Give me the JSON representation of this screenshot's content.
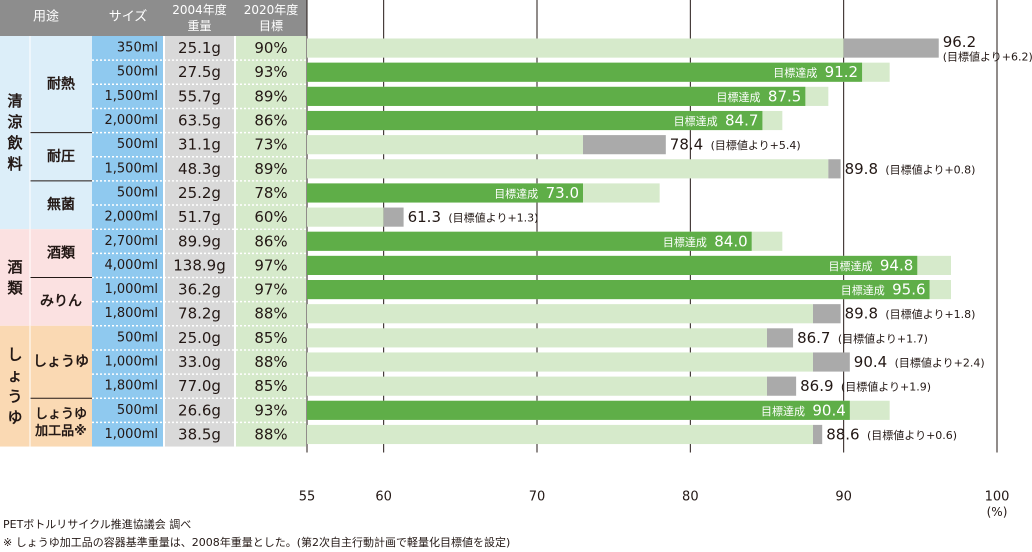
{
  "chart_data": {
    "type": "bar",
    "title": "",
    "xlabel": "",
    "ylabel": "",
    "xlim": [
      55,
      100
    ],
    "xticks": [
      55,
      60,
      70,
      80,
      90,
      100
    ],
    "unit_label": "(%)",
    "achieved_label": "目標達成",
    "headers": {
      "use": "用途",
      "size": "サイズ",
      "weight_2004_line1": "2004年度",
      "weight_2004_line2": "重量",
      "target_2020_line1": "2020年度",
      "target_2020_line2": "目標"
    },
    "category_groups": [
      {
        "name": "清涼飲料",
        "color": "#dceef9",
        "subgroups": [
          {
            "name": "耐熱",
            "rows": 4
          },
          {
            "name": "耐圧",
            "rows": 2
          },
          {
            "name": "無菌",
            "rows": 2
          }
        ]
      },
      {
        "name": "酒類",
        "color": "#fbe1e1",
        "subgroups": [
          {
            "name": "酒類",
            "rows": 2
          },
          {
            "name": "みりん",
            "rows": 2
          }
        ]
      },
      {
        "name": "しょうゆ",
        "color": "#fad9b3",
        "subgroups": [
          {
            "name": "しょうゆ",
            "rows": 3
          },
          {
            "name": "しょうゆ加工品",
            "rows": 2,
            "mark": "※"
          }
        ]
      }
    ],
    "rows": [
      {
        "size": "350ml",
        "weight2004": "25.1g",
        "target_label": "90%",
        "target": 90,
        "actual": 96.2,
        "achieved": false,
        "value_label": "96.2",
        "diff_label": "(目標値より+6.2)"
      },
      {
        "size": "500ml",
        "weight2004": "27.5g",
        "target_label": "93%",
        "target": 93,
        "actual": 91.2,
        "achieved": true,
        "value_label": "91.2",
        "diff_label": ""
      },
      {
        "size": "1,500ml",
        "weight2004": "55.7g",
        "target_label": "89%",
        "target": 89,
        "actual": 87.5,
        "achieved": true,
        "value_label": "87.5",
        "diff_label": ""
      },
      {
        "size": "2,000ml",
        "weight2004": "63.5g",
        "target_label": "86%",
        "target": 86,
        "actual": 84.7,
        "achieved": true,
        "value_label": "84.7",
        "diff_label": ""
      },
      {
        "size": "500ml",
        "weight2004": "31.1g",
        "target_label": "73%",
        "target": 73,
        "actual": 78.4,
        "achieved": false,
        "value_label": "78.4",
        "diff_label": "(目標値より+5.4)"
      },
      {
        "size": "1,500ml",
        "weight2004": "48.3g",
        "target_label": "89%",
        "target": 89,
        "actual": 89.8,
        "achieved": false,
        "value_label": "89.8",
        "diff_label": "(目標値より+0.8)"
      },
      {
        "size": "500ml",
        "weight2004": "25.2g",
        "target_label": "78%",
        "target": 78,
        "actual": 73.0,
        "achieved": true,
        "value_label": "73.0",
        "diff_label": ""
      },
      {
        "size": "2,000ml",
        "weight2004": "51.7g",
        "target_label": "60%",
        "target": 60,
        "actual": 61.3,
        "achieved": false,
        "value_label": "61.3",
        "diff_label": "(目標値より+1.3)"
      },
      {
        "size": "2,700ml",
        "weight2004": "89.9g",
        "target_label": "86%",
        "target": 86,
        "actual": 84.0,
        "achieved": true,
        "value_label": "84.0",
        "diff_label": ""
      },
      {
        "size": "4,000ml",
        "weight2004": "138.9g",
        "target_label": "97%",
        "target": 97,
        "actual": 94.8,
        "achieved": true,
        "value_label": "94.8",
        "diff_label": ""
      },
      {
        "size": "1,000ml",
        "weight2004": "36.2g",
        "target_label": "97%",
        "target": 97,
        "actual": 95.6,
        "achieved": true,
        "value_label": "95.6",
        "diff_label": ""
      },
      {
        "size": "1,800ml",
        "weight2004": "78.2g",
        "target_label": "88%",
        "target": 88,
        "actual": 89.8,
        "achieved": false,
        "value_label": "89.8",
        "diff_label": "(目標値より+1.8)"
      },
      {
        "size": "500ml",
        "weight2004": "25.0g",
        "target_label": "85%",
        "target": 85,
        "actual": 86.7,
        "achieved": false,
        "value_label": "86.7",
        "diff_label": "(目標値より+1.7)"
      },
      {
        "size": "1,000ml",
        "weight2004": "33.0g",
        "target_label": "88%",
        "target": 88,
        "actual": 90.4,
        "achieved": false,
        "value_label": "90.4",
        "diff_label": "(目標値より+2.4)"
      },
      {
        "size": "1,800ml",
        "weight2004": "77.0g",
        "target_label": "85%",
        "target": 85,
        "actual": 86.9,
        "achieved": false,
        "value_label": "86.9",
        "diff_label": "(目標値より+1.9)"
      },
      {
        "size": "500ml",
        "weight2004": "26.6g",
        "target_label": "93%",
        "target": 93,
        "actual": 90.4,
        "achieved": true,
        "value_label": "90.4",
        "diff_label": ""
      },
      {
        "size": "1,000ml",
        "weight2004": "38.5g",
        "target_label": "88%",
        "target": 88,
        "actual": 88.6,
        "achieved": false,
        "value_label": "88.6",
        "diff_label": "(目標値より+0.6)"
      }
    ],
    "colors": {
      "achieved": "#5fae48",
      "target": "#d6eacb",
      "excess": "#aaaaaa",
      "header": "#8d8d8d",
      "size_col": "#8fc9ef",
      "weight_col": "#d9d9d9",
      "target_col": "#d6eacb"
    }
  },
  "notes": {
    "source": "PETボトルリサイクル推進協議会 調べ",
    "footnote": "※ しょうゆ加工品の容器基準重量は、2008年重量とした。(第2次自主行動計画で軽量化目標値を設定)"
  }
}
